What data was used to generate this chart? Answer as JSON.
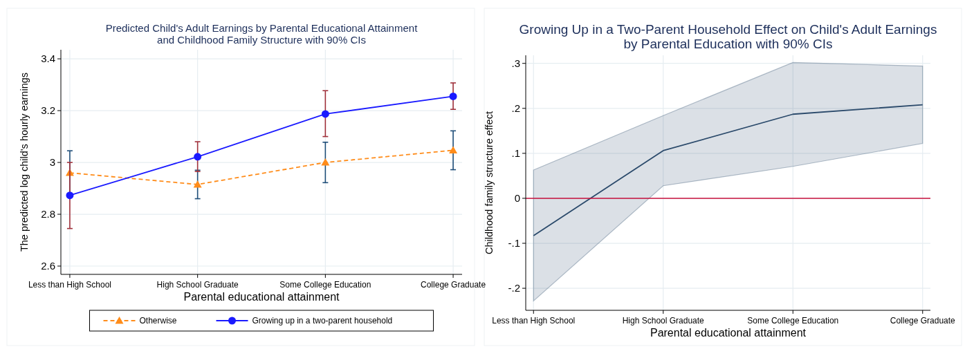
{
  "chart_data": [
    {
      "type": "line",
      "title": "Predicted Child's Adult Earnings by Parental Educational Attainment\nand Childhood Family Structure with 90% CIs",
      "xlabel": "Parental educational attainment",
      "ylabel": "The predicted log child's hourly earnings",
      "categories": [
        "Less than High School",
        "High School Graduate",
        "Some College Education",
        "College Graduate"
      ],
      "series": [
        {
          "name": "Otherwise",
          "color": "#ff8c1a",
          "marker": "triangle",
          "line_style": "dashed",
          "values": [
            2.96,
            2.915,
            3.0,
            3.047
          ],
          "errors": [
            [
              2.875,
              3.045
            ],
            [
              2.86,
              2.97
            ],
            [
              2.922,
              3.078
            ],
            [
              2.972,
              3.122
            ]
          ]
        },
        {
          "name": "Growing up in a two-parent household",
          "color": "#1a1aff",
          "marker": "circle",
          "line_style": "solid",
          "values": [
            2.873,
            3.022,
            3.187,
            3.255
          ],
          "errors": [
            [
              2.745,
              3.0
            ],
            [
              2.965,
              3.08
            ],
            [
              3.1,
              3.277
            ],
            [
              3.205,
              3.307
            ]
          ]
        }
      ],
      "ylim": [
        2.568,
        3.435
      ],
      "yticks": [
        2.6,
        2.8,
        3,
        3.2,
        3.4
      ],
      "grid": true,
      "legend": "bottom"
    },
    {
      "type": "line",
      "title": "Growing Up in a Two-Parent Household Effect on Child's Adult Earnings\nby Parental Education with 90% CIs",
      "xlabel": "Parental educational attainment",
      "ylabel": "Childhood family structure effect",
      "categories": [
        "Less than High School",
        "High School Graduate",
        "Some College Education",
        "College Graduate"
      ],
      "series": [
        {
          "color": "#2b4a6b",
          "values": [
            -0.083,
            0.106,
            0.187,
            0.208
          ],
          "lower": [
            -0.228,
            0.028,
            0.071,
            0.122
          ],
          "upper": [
            0.063,
            0.184,
            0.302,
            0.294
          ]
        }
      ],
      "ylim": [
        -0.249,
        0.318
      ],
      "yticks": [
        {
          "value": -0.2,
          "label": "-.2"
        },
        {
          "value": -0.1,
          "label": "-.1"
        },
        0,
        {
          "value": 0.1,
          "label": ".1"
        },
        {
          "value": 0.2,
          "label": ".2"
        },
        {
          "value": 0.3,
          "label": ".3"
        }
      ],
      "grid": true,
      "ref_lines": [
        {
          "axis": "y",
          "value": 0,
          "color": "#c8103c"
        }
      ]
    }
  ]
}
